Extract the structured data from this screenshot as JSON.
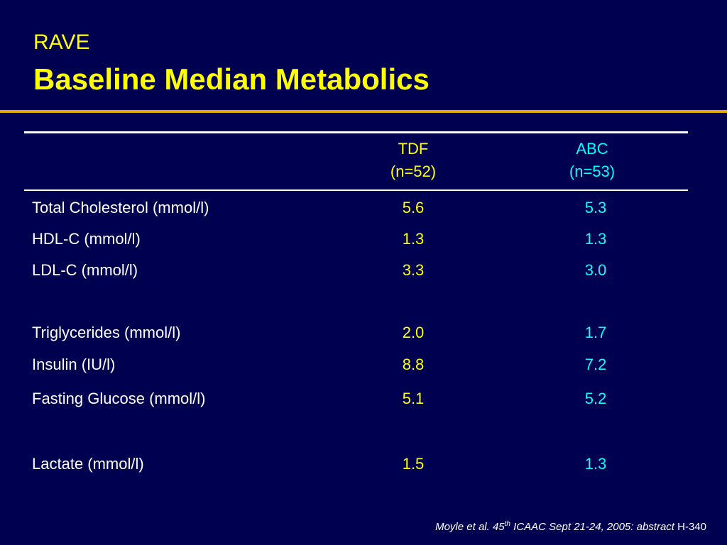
{
  "title": {
    "subtitle": "RAVE",
    "main": "Baseline Median Metabolics"
  },
  "table": {
    "columns": [
      {
        "name": "TDF",
        "n": "(n=52)"
      },
      {
        "name": "ABC",
        "n": "(n=53)"
      }
    ],
    "rows": [
      {
        "label": "Total Cholesterol (mmol/l)",
        "tdf": "5.6",
        "abc": "5.3"
      },
      {
        "label": "HDL-C (mmol/l)",
        "tdf": "1.3",
        "abc": "1.3"
      },
      {
        "label": "LDL-C (mmol/l)",
        "tdf": "3.3",
        "abc": "3.0"
      },
      {
        "label": "Triglycerides (mmol/l)",
        "tdf": "2.0",
        "abc": "1.7"
      },
      {
        "label": "Insulin (IU/l)",
        "tdf": "8.8",
        "abc": "7.2"
      },
      {
        "label": "Fasting Glucose (mmol/l)",
        "tdf": "5.1",
        "abc": "5.2"
      },
      {
        "label": "Lactate (mmol/l)",
        "tdf": "1.5",
        "abc": "1.3"
      }
    ]
  },
  "citation": {
    "part1": "Moyle et al. 45",
    "sup": "th",
    "part2": " ICAAC Sept 21-24, 2005: abstract",
    "part3": " H-340"
  },
  "colors": {
    "background": "#000050",
    "title": "#ffff00",
    "rule": "#e3a814",
    "tdf": "#ffff00",
    "abc": "#00ffff",
    "text": "#ffffff"
  }
}
